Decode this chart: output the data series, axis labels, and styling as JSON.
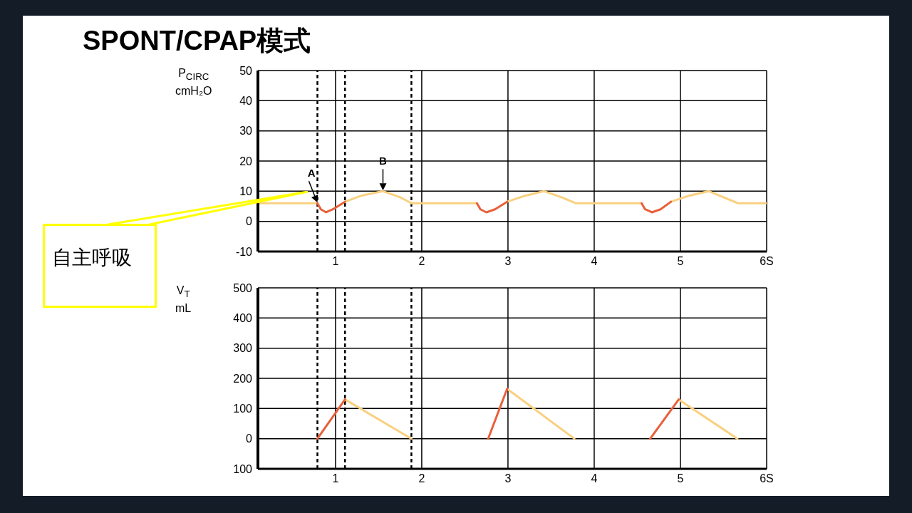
{
  "chart_data": [
    {
      "type": "line",
      "title": "SPONT/CPAP模式",
      "ylabel": "P$_{CIRC}$\ncmH₂O",
      "x": [
        0.1,
        0.79,
        0.83,
        0.89,
        0.97,
        1.11,
        1.3,
        1.55,
        1.75,
        1.88,
        2.64,
        2.68,
        2.75,
        2.85,
        2.99,
        3.2,
        3.42,
        3.62,
        3.79,
        4.55,
        4.59,
        4.67,
        4.77,
        4.89,
        5.1,
        5.33,
        5.5,
        5.67,
        6.0
      ],
      "series": [
        {
          "color": "#f9d080",
          "values": [
            6,
            6,
            null,
            null,
            null,
            6.5,
            8.5,
            10,
            8,
            6,
            6,
            null,
            null,
            null,
            6.5,
            8.5,
            10,
            8,
            6,
            6,
            null,
            null,
            null,
            6.5,
            8.5,
            10,
            8,
            6,
            6
          ]
        },
        {
          "color": "#e8603a",
          "values": [
            null,
            6,
            4,
            3,
            4,
            6.5,
            null,
            null,
            null,
            null,
            6,
            4,
            3,
            4,
            6.5,
            null,
            null,
            null,
            null,
            6,
            4,
            3,
            4,
            6.5,
            null,
            null,
            null,
            null,
            null
          ]
        }
      ],
      "xlim": [
        0.1,
        6
      ],
      "xticks": [
        1,
        2,
        3,
        4,
        5,
        {
          "value": 6,
          "label": "6S"
        }
      ],
      "ylim": [
        -10,
        50
      ],
      "yticks": [
        -10,
        0,
        10,
        20,
        30,
        40,
        50
      ],
      "grid": true,
      "marker": "none",
      "ref_lines": [
        {
          "axis": "x",
          "value": 0.79,
          "line_style": "dashed"
        },
        {
          "axis": "x",
          "value": 1.11,
          "line_style": "dashed"
        },
        {
          "axis": "x",
          "value": 1.88,
          "line_style": "dashed"
        }
      ],
      "annotations": [
        {
          "text": "A",
          "x": 0.79,
          "y": 6
        },
        {
          "text": "B",
          "x": 1.55,
          "y": 10
        },
        "自主呼吸"
      ]
    },
    {
      "type": "line",
      "ylabel": "V$_{T}$\nmL",
      "x": [
        0.79,
        1.11,
        1.88,
        2.77,
        2.99,
        3.77,
        4.65,
        4.98,
        5.66
      ],
      "series": [
        {
          "color": "#f9d080",
          "values": [
            null,
            130,
            0,
            null,
            165,
            0,
            null,
            130,
            0
          ]
        },
        {
          "color": "#e8603a",
          "values": [
            0,
            130,
            null,
            0,
            165,
            null,
            0,
            130,
            null
          ]
        }
      ],
      "xlim": [
        0.1,
        6
      ],
      "xticks": [
        1,
        2,
        3,
        4,
        5,
        {
          "value": 6,
          "label": "6S"
        }
      ],
      "ylim": [
        -100,
        500
      ],
      "yticks": [
        {
          "value": -100,
          "label": "100"
        },
        0,
        100,
        200,
        300,
        400,
        500
      ],
      "grid": true,
      "marker": "none",
      "ref_lines": [
        {
          "axis": "x",
          "value": 0.79,
          "line_style": "dashed"
        },
        {
          "axis": "x",
          "value": 1.11,
          "line_style": "dashed"
        },
        {
          "axis": "x",
          "value": 1.88,
          "line_style": "dashed"
        }
      ]
    }
  ]
}
